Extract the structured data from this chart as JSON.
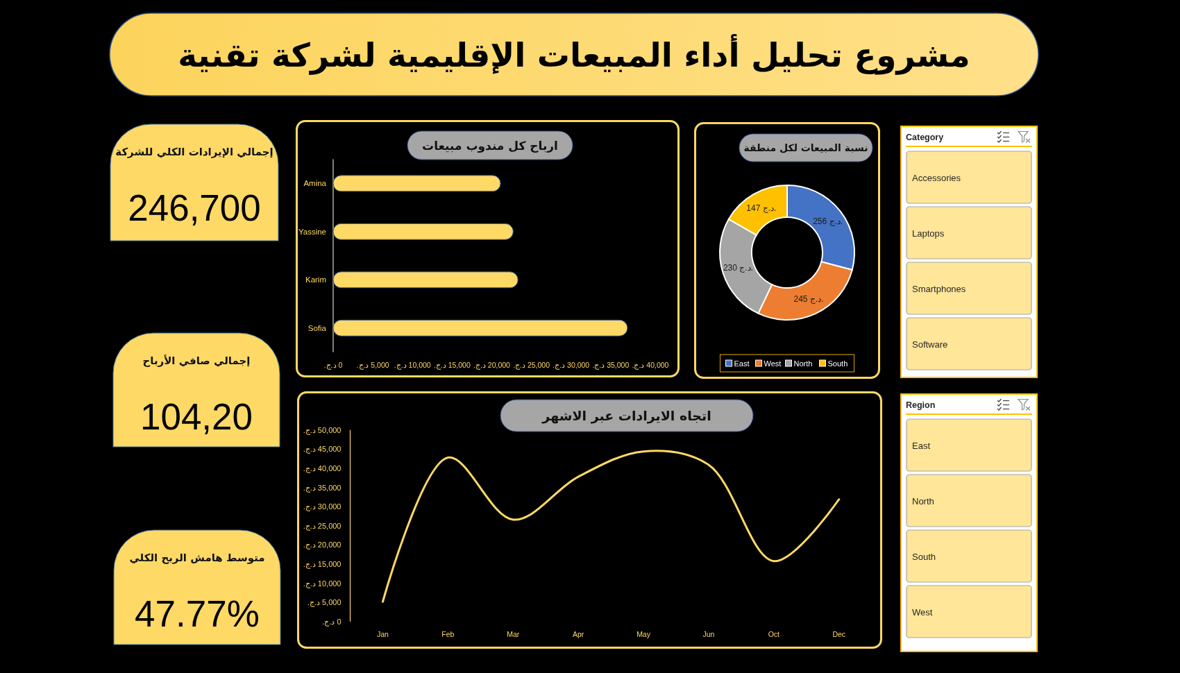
{
  "chart_data": [
    {
      "type": "other",
      "title": "مشروع تحليل أداء المبيعات الإقليمية لشركة تقنية"
    },
    {
      "type": "other",
      "title": "إجمالي الإيرادات الكلي للشركة",
      "annotations": [
        "246,700"
      ]
    },
    {
      "type": "bar",
      "orientation": "horizontal",
      "title": "ارباح كل مندوب مبيعات",
      "categories": [
        "Amina",
        "Yassine",
        "Karim",
        "Sofia"
      ],
      "values": [
        21100,
        22700,
        23300,
        37100
      ],
      "color": "#ffd966",
      "xlim": [
        0,
        40000
      ],
      "xticks": [
        {
          "value": 0,
          "label": "0 د.ج."
        },
        {
          "value": 5000,
          "label": "5,000 د.ج."
        },
        {
          "value": 10000,
          "label": "10,000 د.ج."
        },
        {
          "value": 15000,
          "label": "15,000 د.ج."
        },
        {
          "value": 20000,
          "label": "20,000 د.ج."
        },
        {
          "value": 25000,
          "label": "25,000 د.ج."
        },
        {
          "value": 30000,
          "label": "30,000 د.ج."
        },
        {
          "value": 35000,
          "label": "35,000 د.ج."
        },
        {
          "value": 40000,
          "label": "40,000 د.ج."
        }
      ]
    },
    {
      "type": "donut",
      "title": "نسبة المبيعات لكل منطقة",
      "categories": [
        "East",
        "West",
        "North",
        "South"
      ],
      "values": [
        256,
        245,
        230,
        147
      ],
      "colors": [
        "#4472c4",
        "#ed7d31",
        "#a5a5a5",
        "#ffc000"
      ],
      "value_labels": [
        "256 د.ج.",
        "245 د.ج.",
        "230 د.ج.",
        "147 د.ج."
      ],
      "legend": "bottom"
    },
    {
      "type": "other",
      "title": "Category",
      "categories": [
        "Accessories",
        "Laptops",
        "Smartphones",
        "Software"
      ]
    },
    {
      "type": "other",
      "title": "إجمالي صافي الأرباح",
      "annotations": [
        "104,20"
      ]
    },
    {
      "type": "line",
      "title": "اتجاه الايرادات عبر الاشهر",
      "categories": [
        "Jan",
        "Feb",
        "Mar",
        "Apr",
        "May",
        "Jun",
        "Oct",
        "Dec"
      ],
      "values": [
        5200,
        42800,
        26600,
        37800,
        44400,
        40900,
        15800,
        31900
      ],
      "color": "#ffd966",
      "ylim": [
        0,
        50000
      ],
      "yticks": [
        {
          "value": 0,
          "label": "0 د.ج."
        },
        {
          "value": 5000,
          "label": "5,000 د.ج."
        },
        {
          "value": 10000,
          "label": "10,000 د.ج."
        },
        {
          "value": 15000,
          "label": "15,000 د.ج."
        },
        {
          "value": 20000,
          "label": "20,000 د.ج."
        },
        {
          "value": 25000,
          "label": "25,000 د.ج."
        },
        {
          "value": 30000,
          "label": "30,000 د.ج."
        },
        {
          "value": 35000,
          "label": "35,000 د.ج."
        },
        {
          "value": 40000,
          "label": "40,000 د.ج."
        },
        {
          "value": 45000,
          "label": "45,000 د.ج."
        },
        {
          "value": 50000,
          "label": "50,000 د.ج."
        }
      ]
    },
    {
      "type": "other",
      "title": "Region",
      "categories": [
        "East",
        "North",
        "South",
        "West"
      ]
    },
    {
      "type": "other",
      "title": "متوسط هامش الربح الكلي",
      "annotations": [
        "47.77%"
      ]
    }
  ]
}
